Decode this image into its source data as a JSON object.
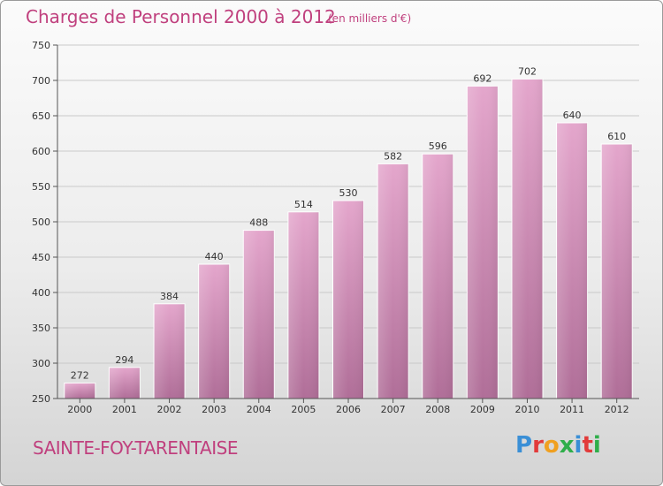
{
  "header": {
    "title": "Charges de Personnel 2000 à 2012",
    "subtitle": "(en milliers d'€)"
  },
  "footer": {
    "city": "SAINTE-FOY-TARENTAISE",
    "logo_letters": [
      "P",
      "r",
      "o",
      "x",
      "i",
      "t",
      "i"
    ],
    "logo_colors": [
      "#3a8fd6",
      "#e23a3a",
      "#f0a020",
      "#2fae4a",
      "#3a8fd6",
      "#e23a3a",
      "#2fae4a"
    ]
  },
  "chart_data": {
    "type": "bar",
    "title": "Charges de Personnel 2000 à 2012",
    "subtitle": "(en milliers d'€)",
    "categories": [
      "2000",
      "2001",
      "2002",
      "2003",
      "2004",
      "2005",
      "2006",
      "2007",
      "2008",
      "2009",
      "2010",
      "2011",
      "2012"
    ],
    "values": [
      272,
      294,
      384,
      440,
      488,
      514,
      530,
      582,
      596,
      692,
      702,
      640,
      610
    ],
    "ylim": [
      250,
      750
    ],
    "yticks": [
      250,
      300,
      350,
      400,
      450,
      500,
      550,
      600,
      650,
      700,
      750
    ],
    "grid": true,
    "bar_color_top": "#e4a6cc",
    "bar_color_bottom": "#b06e98"
  }
}
